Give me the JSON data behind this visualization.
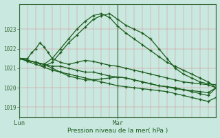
{
  "title": "Pression niveau de la mer( hPa )",
  "background_color": "#c8e8e0",
  "plot_bg_color": "#c8e8e0",
  "line_color": "#1a5c1a",
  "ylim": [
    1018.5,
    1024.3
  ],
  "xlim": [
    0,
    48
  ],
  "yticks": [
    1019,
    1020,
    1021,
    1022,
    1023
  ],
  "xtick_labels": [
    "Lun",
    "Mar"
  ],
  "xtick_positions": [
    0,
    24
  ],
  "vline_x": 24,
  "marker": "+",
  "markersize": 3.5,
  "linewidth": 0.9,
  "series": [
    {
      "x": [
        0,
        2,
        4,
        6,
        8,
        10,
        12,
        14,
        16,
        18,
        20,
        22,
        24,
        26,
        28,
        30,
        32,
        34,
        36,
        38,
        40,
        42,
        44,
        46,
        48
      ],
      "y": [
        1021.5,
        1021.4,
        1021.3,
        1021.2,
        1021.1,
        1021.1,
        1021.0,
        1020.9,
        1020.8,
        1020.8,
        1020.7,
        1020.6,
        1020.55,
        1020.5,
        1020.4,
        1020.3,
        1020.2,
        1020.1,
        1020.05,
        1019.95,
        1019.9,
        1019.85,
        1019.8,
        1019.75,
        1020.0
      ]
    },
    {
      "x": [
        0,
        2,
        4,
        6,
        8,
        10,
        12,
        14,
        16,
        18,
        20,
        22,
        24,
        26,
        28,
        30,
        32,
        34,
        36,
        38,
        40,
        42,
        44,
        46,
        48
      ],
      "y": [
        1021.5,
        1021.35,
        1021.2,
        1021.05,
        1020.9,
        1020.8,
        1020.7,
        1020.6,
        1020.5,
        1020.4,
        1020.3,
        1020.2,
        1020.1,
        1020.05,
        1020.0,
        1019.95,
        1019.9,
        1019.85,
        1019.8,
        1019.7,
        1019.6,
        1019.5,
        1019.4,
        1019.3,
        1019.5
      ]
    },
    {
      "x": [
        0,
        2,
        4,
        6,
        8,
        10,
        12,
        14,
        16,
        18,
        20,
        22,
        24,
        26,
        28,
        30,
        32,
        34,
        36,
        38,
        40,
        42,
        44,
        46,
        48
      ],
      "y": [
        1021.5,
        1021.4,
        1021.3,
        1021.2,
        1021.0,
        1020.8,
        1020.6,
        1020.5,
        1020.4,
        1020.4,
        1020.45,
        1020.5,
        1020.55,
        1020.5,
        1020.4,
        1020.3,
        1020.2,
        1020.1,
        1020.05,
        1020.0,
        1019.9,
        1019.8,
        1019.7,
        1019.6,
        1020.0
      ]
    },
    {
      "x": [
        0,
        2,
        3,
        4,
        5,
        6,
        7,
        8,
        10,
        12,
        14,
        16,
        18,
        20,
        22,
        24,
        26,
        28,
        30,
        32,
        34,
        36,
        38,
        40,
        42,
        44,
        46,
        48
      ],
      "y": [
        1021.5,
        1021.5,
        1021.8,
        1022.0,
        1022.3,
        1022.1,
        1021.8,
        1021.5,
        1021.3,
        1021.2,
        1021.3,
        1021.4,
        1021.35,
        1021.25,
        1021.15,
        1021.1,
        1021.0,
        1020.9,
        1020.8,
        1020.7,
        1020.6,
        1020.5,
        1020.4,
        1020.3,
        1020.25,
        1020.2,
        1020.15,
        1020.0
      ]
    },
    {
      "x": [
        0,
        2,
        4,
        6,
        8,
        10,
        12,
        14,
        16,
        18,
        20,
        22,
        24,
        26,
        28,
        30,
        32,
        34,
        36,
        38,
        40,
        42,
        44,
        46,
        48
      ],
      "y": [
        1021.5,
        1021.4,
        1021.3,
        1021.2,
        1021.5,
        1022.0,
        1022.5,
        1023.0,
        1023.4,
        1023.7,
        1023.8,
        1023.6,
        1023.15,
        1022.8,
        1022.5,
        1022.2,
        1021.9,
        1021.6,
        1021.3,
        1021.1,
        1020.9,
        1020.7,
        1020.5,
        1020.3,
        1020.0
      ]
    },
    {
      "x": [
        0,
        2,
        4,
        6,
        8,
        10,
        12,
        14,
        16,
        18,
        20,
        22,
        24,
        26,
        28,
        30,
        32,
        34,
        36,
        38,
        40,
        42,
        44,
        46,
        48
      ],
      "y": [
        1021.5,
        1021.4,
        1021.3,
        1021.1,
        1021.3,
        1021.8,
        1022.3,
        1022.7,
        1023.1,
        1023.5,
        1023.7,
        1023.8,
        1023.5,
        1023.2,
        1023.0,
        1022.8,
        1022.5,
        1022.0,
        1021.5,
        1021.0,
        1020.7,
        1020.5,
        1020.3,
        1020.2,
        1020.15
      ]
    }
  ]
}
